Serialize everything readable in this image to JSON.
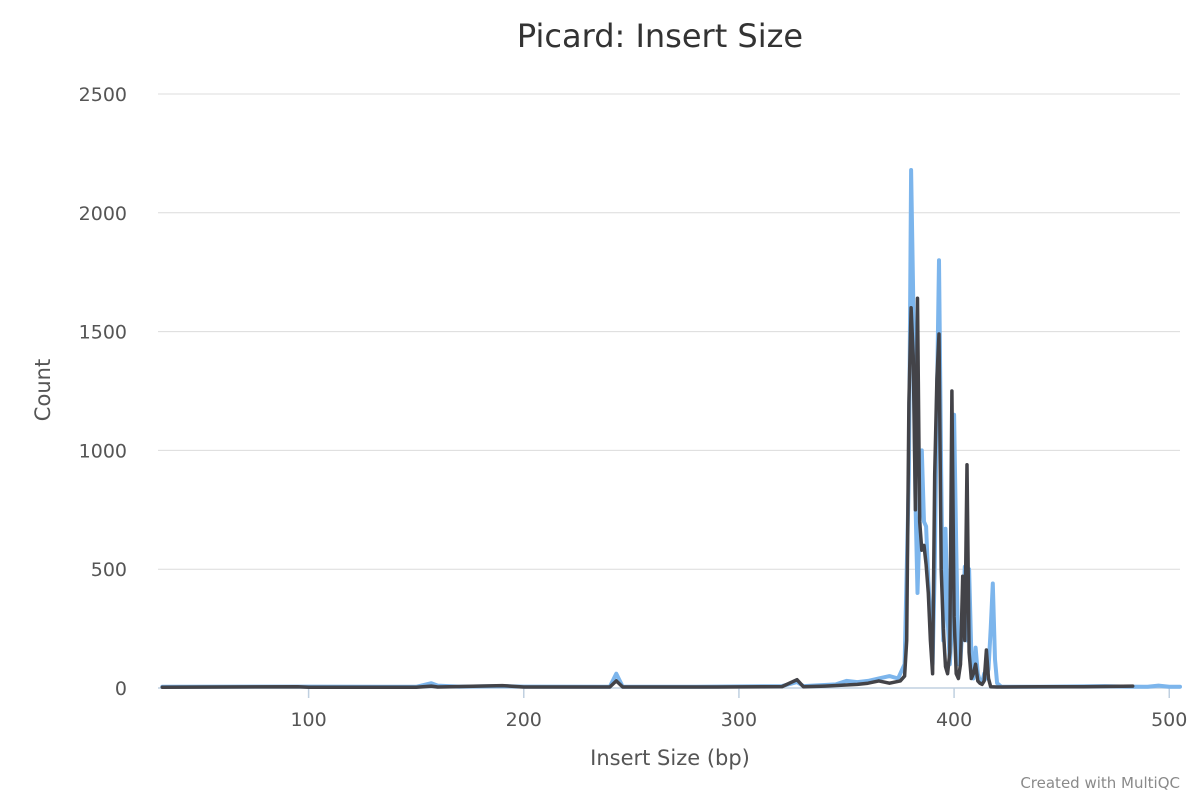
{
  "chart_data": {
    "type": "line",
    "title": "Picard: Insert Size",
    "xlabel": "Insert Size (bp)",
    "ylabel": "Count",
    "xlim": [
      30,
      505
    ],
    "ylim": [
      0,
      2500
    ],
    "x_ticks": [
      100,
      200,
      300,
      400,
      500
    ],
    "y_ticks": [
      0,
      500,
      1000,
      1500,
      2000,
      2500
    ],
    "x_tick_labels": [
      "100",
      "200",
      "300",
      "400",
      "500"
    ],
    "y_tick_labels": [
      "0",
      "500",
      "1000",
      "1500",
      "2000",
      "2500"
    ],
    "grid": true,
    "legend": "none",
    "credit": "Created with MultiQC",
    "series": [
      {
        "color": "#7cb5ec",
        "points": [
          [
            32,
            5
          ],
          [
            100,
            6
          ],
          [
            150,
            5
          ],
          [
            157,
            20
          ],
          [
            160,
            10
          ],
          [
            170,
            6
          ],
          [
            190,
            8
          ],
          [
            200,
            6
          ],
          [
            240,
            5
          ],
          [
            243,
            60
          ],
          [
            246,
            5
          ],
          [
            280,
            5
          ],
          [
            320,
            8
          ],
          [
            327,
            25
          ],
          [
            330,
            8
          ],
          [
            345,
            15
          ],
          [
            350,
            30
          ],
          [
            355,
            25
          ],
          [
            360,
            30
          ],
          [
            365,
            40
          ],
          [
            370,
            50
          ],
          [
            374,
            40
          ],
          [
            377,
            100
          ],
          [
            379,
            900
          ],
          [
            380,
            2180
          ],
          [
            381,
            1650
          ],
          [
            382,
            800
          ],
          [
            383,
            400
          ],
          [
            384,
            700
          ],
          [
            385,
            1000
          ],
          [
            386,
            700
          ],
          [
            387,
            680
          ],
          [
            388,
            450
          ],
          [
            389,
            300
          ],
          [
            390,
            100
          ],
          [
            391,
            500
          ],
          [
            392,
            1200
          ],
          [
            393,
            1800
          ],
          [
            394,
            900
          ],
          [
            395,
            200
          ],
          [
            396,
            670
          ],
          [
            397,
            300
          ],
          [
            398,
            100
          ],
          [
            399,
            250
          ],
          [
            400,
            1150
          ],
          [
            401,
            600
          ],
          [
            402,
            100
          ],
          [
            403,
            120
          ],
          [
            404,
            280
          ],
          [
            405,
            510
          ],
          [
            406,
            200
          ],
          [
            407,
            500
          ],
          [
            408,
            150
          ],
          [
            409,
            40
          ],
          [
            410,
            170
          ],
          [
            411,
            60
          ],
          [
            412,
            30
          ],
          [
            413,
            20
          ],
          [
            414,
            60
          ],
          [
            415,
            40
          ],
          [
            416,
            80
          ],
          [
            417,
            250
          ],
          [
            418,
            440
          ],
          [
            419,
            120
          ],
          [
            420,
            20
          ],
          [
            422,
            5
          ],
          [
            440,
            5
          ],
          [
            470,
            8
          ],
          [
            480,
            6
          ],
          [
            490,
            5
          ],
          [
            495,
            10
          ],
          [
            500,
            5
          ],
          [
            505,
            5
          ]
        ]
      },
      {
        "color": "#434348",
        "points": [
          [
            32,
            3
          ],
          [
            60,
            4
          ],
          [
            95,
            5
          ],
          [
            100,
            3
          ],
          [
            150,
            3
          ],
          [
            157,
            8
          ],
          [
            160,
            4
          ],
          [
            190,
            10
          ],
          [
            200,
            4
          ],
          [
            240,
            4
          ],
          [
            243,
            30
          ],
          [
            246,
            4
          ],
          [
            290,
            4
          ],
          [
            320,
            6
          ],
          [
            327,
            35
          ],
          [
            330,
            5
          ],
          [
            340,
            8
          ],
          [
            355,
            15
          ],
          [
            360,
            20
          ],
          [
            365,
            30
          ],
          [
            370,
            20
          ],
          [
            375,
            30
          ],
          [
            377,
            50
          ],
          [
            378,
            200
          ],
          [
            379,
            1200
          ],
          [
            380,
            1600
          ],
          [
            381,
            1400
          ],
          [
            382,
            750
          ],
          [
            383,
            1640
          ],
          [
            384,
            700
          ],
          [
            385,
            580
          ],
          [
            386,
            600
          ],
          [
            387,
            520
          ],
          [
            388,
            400
          ],
          [
            389,
            200
          ],
          [
            390,
            60
          ],
          [
            391,
            900
          ],
          [
            392,
            1300
          ],
          [
            393,
            1490
          ],
          [
            394,
            500
          ],
          [
            395,
            250
          ],
          [
            396,
            90
          ],
          [
            397,
            60
          ],
          [
            398,
            150
          ],
          [
            399,
            1250
          ],
          [
            400,
            300
          ],
          [
            401,
            60
          ],
          [
            402,
            40
          ],
          [
            403,
            100
          ],
          [
            404,
            470
          ],
          [
            405,
            200
          ],
          [
            406,
            940
          ],
          [
            407,
            150
          ],
          [
            408,
            40
          ],
          [
            409,
            60
          ],
          [
            410,
            100
          ],
          [
            411,
            30
          ],
          [
            412,
            20
          ],
          [
            413,
            15
          ],
          [
            414,
            30
          ],
          [
            415,
            160
          ],
          [
            416,
            40
          ],
          [
            417,
            5
          ],
          [
            420,
            4
          ],
          [
            440,
            5
          ],
          [
            460,
            5
          ],
          [
            483,
            8
          ]
        ]
      }
    ]
  }
}
